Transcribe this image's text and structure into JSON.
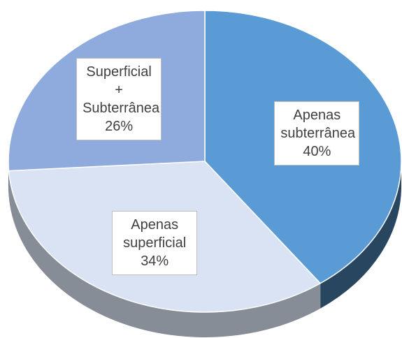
{
  "chart_data": {
    "type": "pie",
    "categories": [
      "Apenas subterrânea",
      "Apenas superficial",
      "Superficial + Subterrânea"
    ],
    "values": [
      40,
      34,
      26
    ],
    "value_labels": [
      "40%",
      "34%",
      "26%"
    ],
    "colors": [
      "#5b9bd5",
      "#dae3f3",
      "#8faadc"
    ]
  }
}
